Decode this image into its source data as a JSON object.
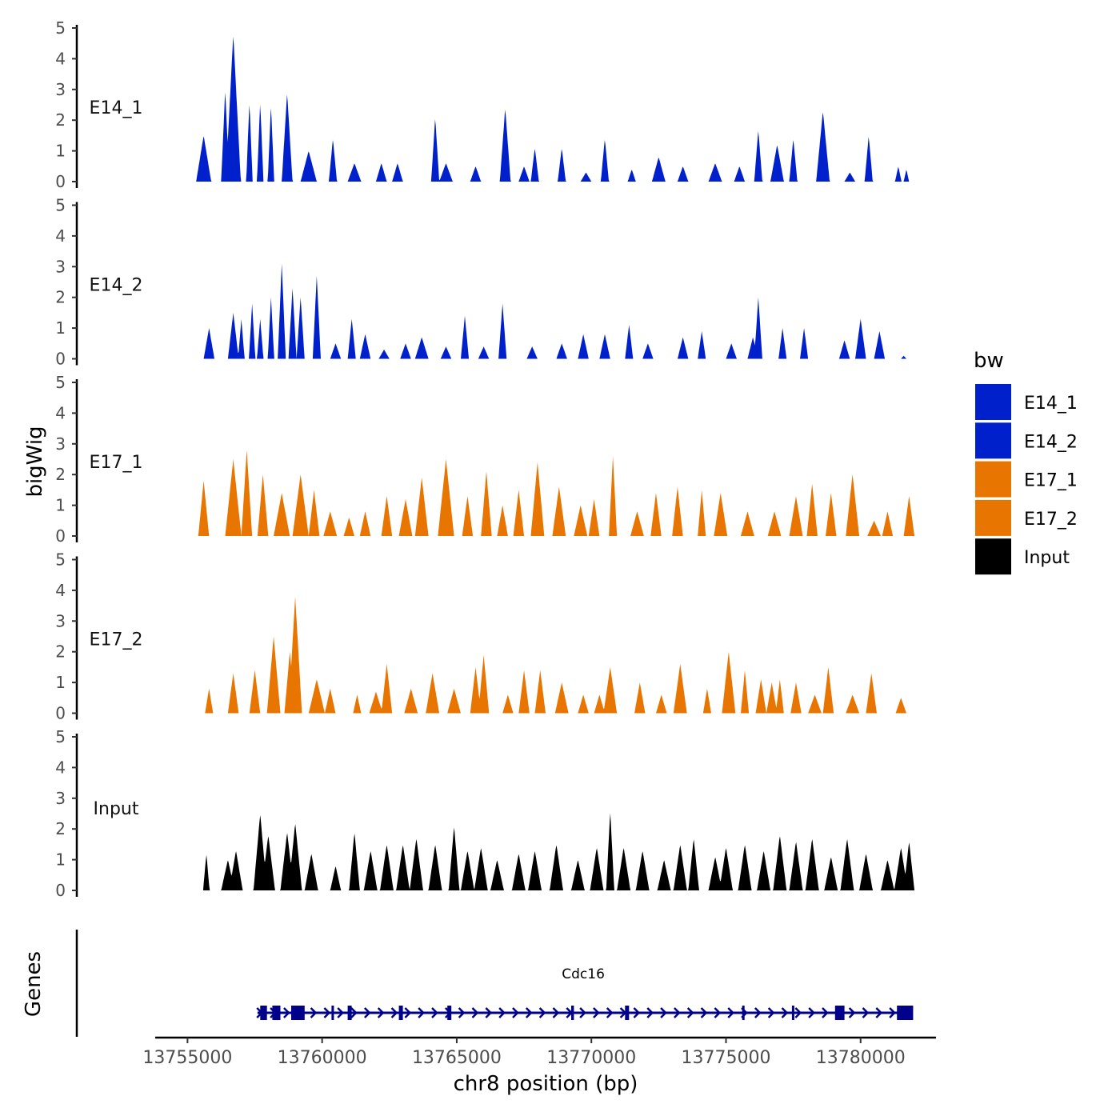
{
  "chart_data": {
    "type": "area",
    "title": "",
    "xlabel": "chr8 position (bp)",
    "ylabel": "bigWig",
    "genes_label": "Genes",
    "xlim": [
      13753800,
      13782800
    ],
    "ylim": [
      0,
      5
    ],
    "x_ticks": [
      13755000,
      13760000,
      13765000,
      13770000,
      13775000,
      13780000
    ],
    "x_tick_labels": [
      "13755000",
      "13760000",
      "13765000",
      "13770000",
      "13775000",
      "13780000"
    ],
    "y_ticks": [
      0,
      1,
      2,
      3,
      4,
      5
    ],
    "y_tick_labels": [
      "0",
      "1",
      "2",
      "3",
      "4",
      "5"
    ],
    "legend": {
      "title": "bw",
      "position": "right",
      "entries": [
        {
          "label": "E14_1",
          "color": "#0020CC"
        },
        {
          "label": "E14_2",
          "color": "#0020CC"
        },
        {
          "label": "E17_1",
          "color": "#E87500"
        },
        {
          "label": "E17_2",
          "color": "#E87500"
        },
        {
          "label": "Input",
          "color": "#000000"
        }
      ]
    },
    "series": [
      {
        "name": "E14_1",
        "color": "#0020CC",
        "peaks": [
          [
            13755600,
            1.5,
            280
          ],
          [
            13756400,
            3.0,
            150
          ],
          [
            13756700,
            4.8,
            280
          ],
          [
            13757300,
            2.6,
            120
          ],
          [
            13757700,
            2.6,
            120
          ],
          [
            13758100,
            2.5,
            120
          ],
          [
            13758700,
            2.9,
            200
          ],
          [
            13759500,
            1.0,
            300
          ],
          [
            13760400,
            1.4,
            150
          ],
          [
            13761200,
            0.6,
            250
          ],
          [
            13762200,
            0.6,
            200
          ],
          [
            13762800,
            0.6,
            200
          ],
          [
            13764200,
            2.1,
            150
          ],
          [
            13764600,
            0.6,
            250
          ],
          [
            13765700,
            0.5,
            200
          ],
          [
            13766800,
            2.4,
            200
          ],
          [
            13767500,
            0.5,
            200
          ],
          [
            13767900,
            1.1,
            150
          ],
          [
            13768900,
            1.1,
            150
          ],
          [
            13769800,
            0.3,
            200
          ],
          [
            13770500,
            1.4,
            150
          ],
          [
            13771500,
            0.4,
            150
          ],
          [
            13772500,
            0.8,
            250
          ],
          [
            13773400,
            0.5,
            200
          ],
          [
            13774600,
            0.6,
            250
          ],
          [
            13775500,
            0.5,
            200
          ],
          [
            13776200,
            1.7,
            150
          ],
          [
            13776900,
            1.2,
            250
          ],
          [
            13777500,
            1.4,
            150
          ],
          [
            13778600,
            2.3,
            250
          ],
          [
            13779600,
            0.3,
            200
          ],
          [
            13780300,
            1.5,
            150
          ],
          [
            13781400,
            0.5,
            120
          ],
          [
            13781700,
            0.4,
            100
          ]
        ]
      },
      {
        "name": "E14_2",
        "color": "#0020CC",
        "peaks": [
          [
            13755800,
            1.0,
            200
          ],
          [
            13756700,
            1.5,
            200
          ],
          [
            13757000,
            1.3,
            120
          ],
          [
            13757400,
            1.8,
            120
          ],
          [
            13757700,
            1.3,
            120
          ],
          [
            13758100,
            2.0,
            120
          ],
          [
            13758500,
            3.1,
            150
          ],
          [
            13758900,
            2.3,
            150
          ],
          [
            13759200,
            2.0,
            150
          ],
          [
            13759800,
            2.7,
            150
          ],
          [
            13760500,
            0.5,
            200
          ],
          [
            13761100,
            1.3,
            150
          ],
          [
            13761600,
            0.8,
            200
          ],
          [
            13762300,
            0.3,
            200
          ],
          [
            13763100,
            0.5,
            200
          ],
          [
            13763700,
            0.7,
            250
          ],
          [
            13764600,
            0.4,
            200
          ],
          [
            13765300,
            1.4,
            150
          ],
          [
            13766000,
            0.4,
            200
          ],
          [
            13766700,
            1.8,
            150
          ],
          [
            13767800,
            0.4,
            200
          ],
          [
            13768900,
            0.5,
            200
          ],
          [
            13769700,
            0.8,
            200
          ],
          [
            13770500,
            0.8,
            200
          ],
          [
            13771400,
            1.1,
            150
          ],
          [
            13772100,
            0.5,
            200
          ],
          [
            13773400,
            0.7,
            200
          ],
          [
            13774100,
            0.9,
            150
          ],
          [
            13775200,
            0.5,
            200
          ],
          [
            13776000,
            0.7,
            200
          ],
          [
            13776200,
            2.0,
            150
          ],
          [
            13777100,
            1.0,
            150
          ],
          [
            13777900,
            1.0,
            150
          ],
          [
            13779400,
            0.6,
            200
          ],
          [
            13780000,
            1.3,
            200
          ],
          [
            13780700,
            0.9,
            200
          ],
          [
            13781600,
            0.1,
            100
          ]
        ]
      },
      {
        "name": "E17_1",
        "color": "#E87500",
        "peaks": [
          [
            13755600,
            1.8,
            200
          ],
          [
            13756700,
            2.5,
            300
          ],
          [
            13757200,
            2.8,
            200
          ],
          [
            13757800,
            2.0,
            200
          ],
          [
            13758500,
            1.4,
            300
          ],
          [
            13759200,
            2.0,
            300
          ],
          [
            13759700,
            1.5,
            200
          ],
          [
            13760300,
            0.8,
            250
          ],
          [
            13761000,
            0.6,
            200
          ],
          [
            13761600,
            0.8,
            200
          ],
          [
            13762400,
            1.3,
            200
          ],
          [
            13763100,
            1.2,
            250
          ],
          [
            13763700,
            1.9,
            250
          ],
          [
            13764600,
            2.5,
            300
          ],
          [
            13765400,
            1.3,
            200
          ],
          [
            13766100,
            2.1,
            200
          ],
          [
            13766700,
            1.0,
            200
          ],
          [
            13767300,
            1.5,
            200
          ],
          [
            13768000,
            2.4,
            250
          ],
          [
            13768800,
            1.6,
            250
          ],
          [
            13769600,
            1.0,
            250
          ],
          [
            13770100,
            1.2,
            200
          ],
          [
            13770800,
            2.6,
            150
          ],
          [
            13771700,
            0.8,
            250
          ],
          [
            13772400,
            1.4,
            200
          ],
          [
            13773200,
            1.6,
            200
          ],
          [
            13774100,
            1.5,
            150
          ],
          [
            13774800,
            1.4,
            250
          ],
          [
            13775800,
            0.8,
            250
          ],
          [
            13776800,
            0.8,
            250
          ],
          [
            13777600,
            1.3,
            250
          ],
          [
            13778200,
            1.7,
            200
          ],
          [
            13778900,
            1.4,
            200
          ],
          [
            13779700,
            2.0,
            250
          ],
          [
            13780500,
            0.5,
            250
          ],
          [
            13781000,
            0.8,
            200
          ],
          [
            13781800,
            1.3,
            200
          ]
        ]
      },
      {
        "name": "E17_2",
        "color": "#E87500",
        "peaks": [
          [
            13755800,
            0.8,
            150
          ],
          [
            13756700,
            1.3,
            200
          ],
          [
            13757500,
            1.4,
            200
          ],
          [
            13758200,
            2.5,
            250
          ],
          [
            13758800,
            2.0,
            200
          ],
          [
            13759000,
            3.8,
            250
          ],
          [
            13759800,
            1.1,
            300
          ],
          [
            13760300,
            0.8,
            200
          ],
          [
            13761300,
            0.6,
            150
          ],
          [
            13762000,
            0.7,
            250
          ],
          [
            13762400,
            1.6,
            200
          ],
          [
            13763300,
            0.8,
            250
          ],
          [
            13764100,
            1.3,
            250
          ],
          [
            13764900,
            0.8,
            250
          ],
          [
            13765700,
            1.5,
            200
          ],
          [
            13766000,
            1.9,
            200
          ],
          [
            13766900,
            0.6,
            200
          ],
          [
            13767500,
            1.4,
            200
          ],
          [
            13768100,
            1.4,
            200
          ],
          [
            13768900,
            1.0,
            250
          ],
          [
            13769700,
            0.6,
            200
          ],
          [
            13770300,
            0.6,
            200
          ],
          [
            13770700,
            1.5,
            250
          ],
          [
            13771800,
            1.0,
            200
          ],
          [
            13772600,
            0.6,
            200
          ],
          [
            13773300,
            1.6,
            250
          ],
          [
            13774300,
            0.8,
            150
          ],
          [
            13775100,
            2.0,
            250
          ],
          [
            13775700,
            1.4,
            150
          ],
          [
            13776300,
            1.1,
            200
          ],
          [
            13776700,
            1.0,
            200
          ],
          [
            13777000,
            1.1,
            150
          ],
          [
            13777600,
            1.0,
            200
          ],
          [
            13778300,
            0.6,
            250
          ],
          [
            13778800,
            1.5,
            200
          ],
          [
            13779700,
            0.6,
            250
          ],
          [
            13780400,
            1.3,
            200
          ],
          [
            13781500,
            0.5,
            200
          ]
        ]
      },
      {
        "name": "Input",
        "color": "#000000",
        "peaks": [
          [
            13755700,
            1.2,
            120
          ],
          [
            13756500,
            1.0,
            250
          ],
          [
            13756800,
            1.3,
            250
          ],
          [
            13757700,
            2.5,
            250
          ],
          [
            13758000,
            1.8,
            250
          ],
          [
            13758700,
            1.9,
            250
          ],
          [
            13759000,
            2.2,
            250
          ],
          [
            13759600,
            1.2,
            250
          ],
          [
            13760500,
            0.8,
            200
          ],
          [
            13761200,
            1.9,
            200
          ],
          [
            13761800,
            1.3,
            250
          ],
          [
            13762400,
            1.5,
            250
          ],
          [
            13763000,
            1.5,
            250
          ],
          [
            13763500,
            1.7,
            250
          ],
          [
            13764200,
            1.5,
            250
          ],
          [
            13764900,
            2.1,
            200
          ],
          [
            13765400,
            1.3,
            250
          ],
          [
            13765900,
            1.4,
            250
          ],
          [
            13766500,
            1.0,
            250
          ],
          [
            13767300,
            1.2,
            250
          ],
          [
            13767900,
            1.3,
            250
          ],
          [
            13768700,
            1.5,
            250
          ],
          [
            13769500,
            1.0,
            250
          ],
          [
            13770200,
            1.4,
            250
          ],
          [
            13770700,
            2.6,
            150
          ],
          [
            13771200,
            1.4,
            250
          ],
          [
            13771900,
            1.3,
            250
          ],
          [
            13772700,
            1.0,
            250
          ],
          [
            13773300,
            1.5,
            250
          ],
          [
            13773800,
            1.7,
            200
          ],
          [
            13774600,
            1.1,
            250
          ],
          [
            13775000,
            1.4,
            250
          ],
          [
            13775700,
            1.5,
            250
          ],
          [
            13776400,
            1.3,
            250
          ],
          [
            13777000,
            1.8,
            250
          ],
          [
            13777600,
            1.6,
            250
          ],
          [
            13778200,
            1.7,
            250
          ],
          [
            13778900,
            1.1,
            250
          ],
          [
            13779500,
            1.7,
            250
          ],
          [
            13780200,
            1.2,
            250
          ],
          [
            13781000,
            1.0,
            250
          ],
          [
            13781500,
            1.4,
            250
          ],
          [
            13781800,
            1.6,
            200
          ]
        ]
      }
    ],
    "gene": {
      "name": "Cdc16",
      "strand": "+",
      "start": 13757600,
      "end": 13781800,
      "exons": [
        [
          13757700,
          13757950
        ],
        [
          13758150,
          13758450
        ],
        [
          13758850,
          13759350
        ],
        [
          13760350,
          13760420
        ],
        [
          13760950,
          13761100
        ],
        [
          13762850,
          13763000
        ],
        [
          13764650,
          13764800
        ],
        [
          13769250,
          13769350
        ],
        [
          13771250,
          13771400
        ],
        [
          13775600,
          13775680
        ],
        [
          13777450,
          13777530
        ],
        [
          13779050,
          13779400
        ],
        [
          13781350,
          13781950
        ]
      ]
    }
  }
}
